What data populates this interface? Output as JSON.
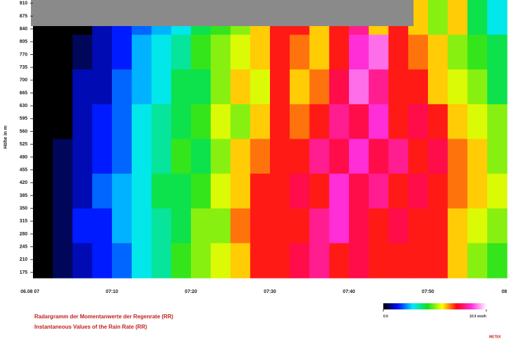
{
  "chart_data": {
    "type": "heatmap",
    "y_label": "Höhe in m",
    "ylim": [
      160,
      919
    ],
    "yticks": [
      910,
      875,
      840,
      805,
      770,
      735,
      700,
      665,
      630,
      595,
      560,
      525,
      490,
      455,
      420,
      385,
      350,
      315,
      280,
      245,
      210,
      175
    ],
    "x_labels": [
      "06.08 07",
      "07:10",
      "07:20",
      "07:30",
      "07:40",
      "07:50",
      "08"
    ],
    "zlim": [
      0,
      10
    ],
    "colormap": [
      "#000000",
      "#0010ff",
      "#00e8ff",
      "#10e020",
      "#ffff00",
      "#ff0018",
      "#ff30e0",
      "#ffffff"
    ],
    "colorbar_ticks": [
      {
        "value": 0,
        "label": "0.0"
      },
      {
        "value": 10,
        "label": "10.0 mm/h"
      }
    ],
    "z": [
      [
        0,
        0,
        0,
        1,
        1.5,
        2,
        2.5,
        3,
        4,
        4.5,
        5,
        6,
        7,
        7,
        6,
        7,
        8,
        6,
        7,
        6,
        5,
        6,
        4,
        3
      ],
      [
        0,
        0,
        0.5,
        1,
        1.5,
        2.5,
        3,
        3.5,
        4.5,
        5,
        5.5,
        6,
        7,
        6.5,
        6,
        7,
        8.5,
        9,
        7,
        6.5,
        6,
        5,
        4.5,
        4
      ],
      [
        0,
        0,
        1,
        1,
        2,
        2.5,
        3,
        4,
        4,
        5,
        6,
        5.5,
        7,
        6,
        6.5,
        7.5,
        9,
        8,
        7,
        7,
        6,
        5.5,
        5,
        4
      ],
      [
        0,
        0,
        1,
        1.5,
        2,
        3,
        3.5,
        4,
        4.5,
        5.5,
        5,
        6,
        7,
        6.5,
        7,
        8,
        7.5,
        8.5,
        7,
        7.5,
        7,
        6,
        5.5,
        5
      ],
      [
        0,
        0.5,
        1,
        1.5,
        2,
        3,
        3.5,
        4.5,
        4,
        5,
        6,
        6.5,
        7,
        7,
        8,
        7.5,
        8.5,
        7.5,
        8,
        7,
        7.5,
        6.5,
        6,
        5
      ],
      [
        0,
        0.5,
        1,
        2,
        2.5,
        3,
        4,
        4,
        4.5,
        5.5,
        6,
        7,
        7,
        7.5,
        7,
        8.5,
        7.5,
        8,
        7,
        7.5,
        7,
        6.5,
        6,
        5.5
      ],
      [
        0,
        0.5,
        1.5,
        1.5,
        2.5,
        3,
        3.5,
        4,
        5,
        5,
        6.5,
        7,
        7,
        7,
        8,
        8.5,
        7.5,
        7,
        7.5,
        7,
        7,
        6,
        5.5,
        5
      ],
      [
        0,
        0.5,
        1,
        1.5,
        2,
        3,
        3.5,
        4.5,
        5,
        5.5,
        6,
        7,
        7,
        7.5,
        8,
        7,
        7.5,
        7,
        7,
        7,
        7,
        6,
        5,
        4.5
      ]
    ],
    "title": "Radargramm der Momentanwerte der Regenrate (RR)",
    "subtitle": "Instantaneous Values of the Rain Rate (RR)",
    "logo": "METEK"
  }
}
